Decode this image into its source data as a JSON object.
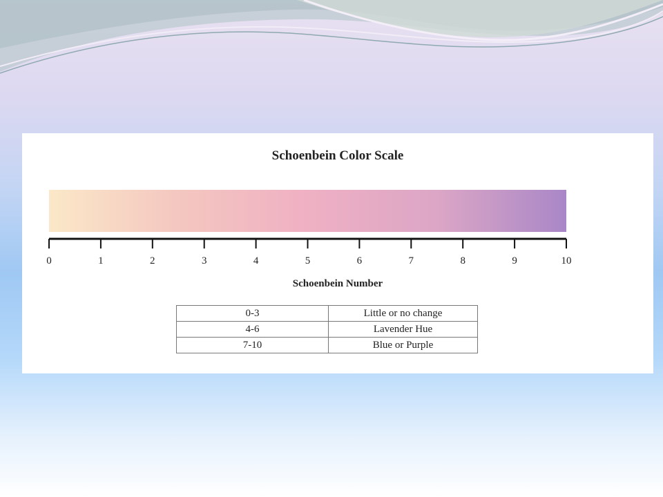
{
  "colors": {
    "gradient": [
      "#fbe8c8",
      "#f4c7c0",
      "#efb0c3",
      "#dca6c6",
      "#a987c7"
    ],
    "axis": "#111111"
  },
  "chart_data": {
    "type": "table",
    "title": "Schoenbein Color Scale",
    "xlabel": "Schoenbein Number",
    "xlim": [
      0,
      10
    ],
    "ticks": [
      "0",
      "1",
      "2",
      "3",
      "4",
      "5",
      "6",
      "7",
      "8",
      "9",
      "10"
    ],
    "rows": [
      {
        "range": "0-3",
        "description": "Little or no change"
      },
      {
        "range": "4-6",
        "description": "Lavender Hue"
      },
      {
        "range": "7-10",
        "description": "Blue or Purple"
      }
    ]
  }
}
